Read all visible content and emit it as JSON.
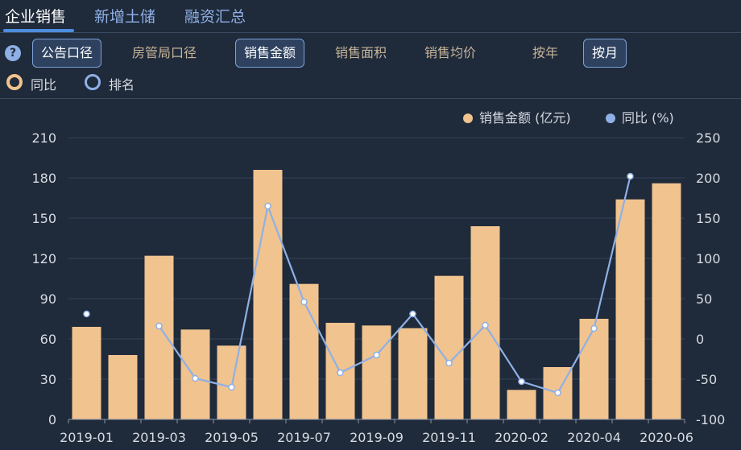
{
  "tabs": [
    {
      "label": "企业销售",
      "active": true
    },
    {
      "label": "新增土储",
      "active": false
    },
    {
      "label": "融资汇总",
      "active": false
    }
  ],
  "help_icon": "?",
  "toolbar": {
    "caliber": [
      "公告口径",
      "房管局口径"
    ],
    "caliber_selected": "公告口径",
    "metrics": [
      "销售金额",
      "销售面积",
      "销售均价"
    ],
    "metric_selected": "销售金额",
    "periods": [
      "按年",
      "按月"
    ],
    "period_selected": "按月"
  },
  "radios": [
    {
      "label": "同比",
      "checked": true
    },
    {
      "label": "排名",
      "checked": false
    }
  ],
  "colors": {
    "bar": "#f0c38f",
    "line": "#8fb0e6",
    "background": "#1f2a3a"
  },
  "chart_data": {
    "type": "bar",
    "categories": [
      "2019-01",
      "2019-02",
      "2019-03",
      "2019-04",
      "2019-05",
      "2019-06",
      "2019-07",
      "2019-08",
      "2019-09",
      "2019-10",
      "2019-11",
      "2019-12",
      "2020-02",
      "2020-03",
      "2020-04",
      "2020-05",
      "2020-06"
    ],
    "x_tick_labels": [
      "2019-01",
      "2019-03",
      "2019-05",
      "2019-07",
      "2019-09",
      "2019-11",
      "2020-02",
      "2020-04",
      "2020-06"
    ],
    "series": [
      {
        "name": "销售金额 (亿元)",
        "type": "bar",
        "axis": "left",
        "values": [
          69,
          48,
          122,
          67,
          55,
          186,
          101,
          72,
          70,
          68,
          107,
          144,
          22,
          39,
          75,
          164,
          176
        ]
      },
      {
        "name": "同比 (%)",
        "type": "line",
        "axis": "right",
        "values": [
          31,
          null,
          16,
          -49,
          -60,
          165,
          46,
          -42,
          -20,
          31,
          -30,
          17,
          -53,
          -67,
          13,
          202,
          null
        ]
      }
    ],
    "y_left": {
      "min": 0,
      "max": 210,
      "ticks": [
        0,
        30,
        60,
        90,
        120,
        150,
        180,
        210
      ]
    },
    "y_right": {
      "min": -100,
      "max": 250,
      "ticks": [
        -100,
        -50,
        0,
        50,
        100,
        150,
        200,
        250
      ]
    },
    "legend": [
      {
        "label": "销售金额 (亿元)",
        "color": "#f0c38f"
      },
      {
        "label": "同比 (%)",
        "color": "#8fb0e6"
      }
    ],
    "legend_position": "top-right",
    "grid": true
  }
}
